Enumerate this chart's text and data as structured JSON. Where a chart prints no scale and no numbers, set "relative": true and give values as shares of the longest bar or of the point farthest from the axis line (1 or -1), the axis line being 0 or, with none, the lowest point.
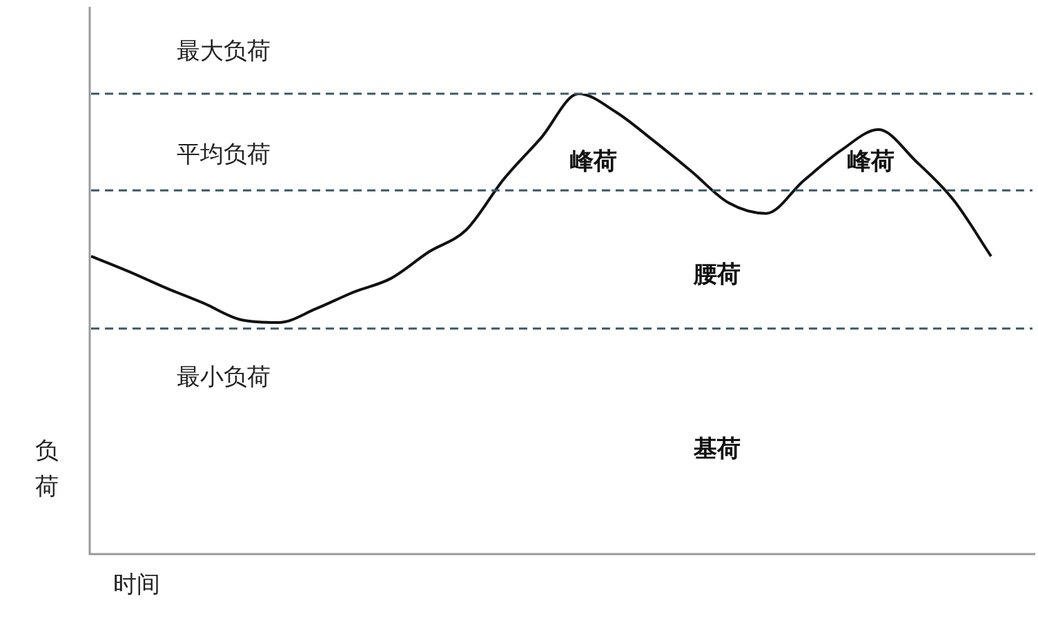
{
  "chart_data": {
    "type": "line",
    "relative": true,
    "xlabel": "时间",
    "ylabel": "负荷",
    "categories": [
      null,
      null,
      null,
      null,
      null,
      null,
      null,
      null,
      null,
      null,
      null,
      null,
      null,
      null,
      null,
      null,
      null,
      null,
      null,
      null,
      null,
      null,
      null,
      null,
      null
    ],
    "series": [
      {
        "color": "#111111",
        "values": [
          0.647,
          0.614,
          0.578,
          0.545,
          0.509,
          0.503,
          0.533,
          0.569,
          0.599,
          0.656,
          0.704,
          0.814,
          0.904,
          1.0,
          0.96,
          0.898,
          0.832,
          0.763,
          0.74,
          0.811,
          0.877,
          0.922,
          0.853,
          0.769,
          0.647
        ]
      }
    ],
    "ref_lines": [
      {
        "axis": "y",
        "value": 1.0,
        "label": "最大负荷",
        "color": "#3e5868",
        "line_style": "dashed"
      },
      {
        "axis": "y",
        "value": 0.79,
        "label": "平均负荷",
        "color": "#3e5868",
        "line_style": "dashed"
      },
      {
        "axis": "y",
        "value": 0.49,
        "label": "最小负荷",
        "color": "#3e5868",
        "line_style": "dashed"
      }
    ],
    "annotations": [
      "峰荷",
      "峰荷",
      "腰荷",
      "基荷"
    ],
    "marker": "none",
    "line_style": "solid",
    "legend": false
  }
}
